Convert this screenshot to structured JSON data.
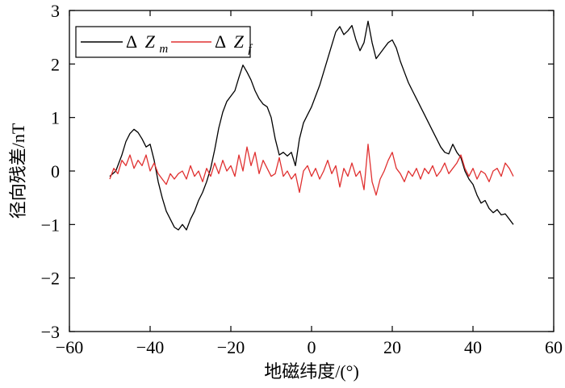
{
  "chart_data": {
    "type": "line",
    "xlabel": "地磁纬度/(°)",
    "ylabel": "径向残差/nT",
    "xlim": [
      -60,
      60
    ],
    "ylim": [
      -3,
      3
    ],
    "xticks": [
      -60,
      -40,
      -20,
      0,
      20,
      40,
      60
    ],
    "yticks": [
      -3,
      -2,
      -1,
      0,
      1,
      2,
      3
    ],
    "xtick_labels": [
      "−60",
      "−40",
      "−20",
      "0",
      "20",
      "40",
      "60"
    ],
    "ytick_labels": [
      "−3",
      "−2",
      "−1",
      "0",
      "1",
      "2",
      "3"
    ],
    "legend_position": "top-left",
    "grid": false,
    "series": [
      {
        "name": "ΔZm",
        "legend_symbol": "Δ",
        "legend_var": "Z",
        "legend_sub": "m",
        "color": "#000000",
        "points": [
          [
            -50,
            -0.1
          ],
          [
            -48.5,
            0.0
          ],
          [
            -47,
            0.3
          ],
          [
            -46,
            0.55
          ],
          [
            -45,
            0.7
          ],
          [
            -44,
            0.78
          ],
          [
            -43,
            0.72
          ],
          [
            -42,
            0.6
          ],
          [
            -41,
            0.45
          ],
          [
            -40,
            0.5
          ],
          [
            -39,
            0.2
          ],
          [
            -38,
            -0.2
          ],
          [
            -37,
            -0.5
          ],
          [
            -36,
            -0.75
          ],
          [
            -35,
            -0.9
          ],
          [
            -34,
            -1.05
          ],
          [
            -33,
            -1.1
          ],
          [
            -32,
            -1.0
          ],
          [
            -31,
            -1.1
          ],
          [
            -30,
            -0.9
          ],
          [
            -29,
            -0.75
          ],
          [
            -28,
            -0.55
          ],
          [
            -27,
            -0.4
          ],
          [
            -26,
            -0.2
          ],
          [
            -25,
            0.05
          ],
          [
            -24,
            0.4
          ],
          [
            -23,
            0.8
          ],
          [
            -22,
            1.1
          ],
          [
            -21,
            1.3
          ],
          [
            -20,
            1.4
          ],
          [
            -19,
            1.5
          ],
          [
            -18,
            1.75
          ],
          [
            -17,
            1.98
          ],
          [
            -16,
            1.85
          ],
          [
            -15,
            1.7
          ],
          [
            -14,
            1.5
          ],
          [
            -13,
            1.35
          ],
          [
            -12,
            1.25
          ],
          [
            -11,
            1.2
          ],
          [
            -10,
            1.0
          ],
          [
            -9,
            0.6
          ],
          [
            -8,
            0.3
          ],
          [
            -7,
            0.35
          ],
          [
            -6,
            0.28
          ],
          [
            -5,
            0.35
          ],
          [
            -4,
            0.1
          ],
          [
            -3,
            0.6
          ],
          [
            -2,
            0.9
          ],
          [
            -1,
            1.05
          ],
          [
            0,
            1.2
          ],
          [
            1,
            1.4
          ],
          [
            2,
            1.6
          ],
          [
            3,
            1.85
          ],
          [
            4,
            2.1
          ],
          [
            5,
            2.35
          ],
          [
            6,
            2.6
          ],
          [
            7,
            2.7
          ],
          [
            8,
            2.55
          ],
          [
            9,
            2.62
          ],
          [
            10,
            2.72
          ],
          [
            11,
            2.45
          ],
          [
            12,
            2.25
          ],
          [
            13,
            2.4
          ],
          [
            14,
            2.8
          ],
          [
            15,
            2.4
          ],
          [
            16,
            2.1
          ],
          [
            17,
            2.2
          ],
          [
            18,
            2.3
          ],
          [
            19,
            2.4
          ],
          [
            20,
            2.45
          ],
          [
            21,
            2.3
          ],
          [
            22,
            2.05
          ],
          [
            23,
            1.85
          ],
          [
            24,
            1.65
          ],
          [
            25,
            1.5
          ],
          [
            26,
            1.35
          ],
          [
            27,
            1.2
          ],
          [
            28,
            1.05
          ],
          [
            29,
            0.9
          ],
          [
            30,
            0.75
          ],
          [
            31,
            0.6
          ],
          [
            32,
            0.45
          ],
          [
            33,
            0.35
          ],
          [
            34,
            0.32
          ],
          [
            35,
            0.5
          ],
          [
            36,
            0.35
          ],
          [
            37,
            0.25
          ],
          [
            38,
            0.0
          ],
          [
            39,
            -0.15
          ],
          [
            40,
            -0.25
          ],
          [
            41,
            -0.45
          ],
          [
            42,
            -0.6
          ],
          [
            43,
            -0.55
          ],
          [
            44,
            -0.7
          ],
          [
            45,
            -0.78
          ],
          [
            46,
            -0.72
          ],
          [
            47,
            -0.82
          ],
          [
            48,
            -0.8
          ],
          [
            49,
            -0.9
          ],
          [
            50,
            -1.0
          ]
        ]
      },
      {
        "name": "ΔZf",
        "legend_symbol": "Δ",
        "legend_var": "Z",
        "legend_sub": "f",
        "color": "#e03030",
        "points": [
          [
            -50,
            -0.15
          ],
          [
            -49,
            0.05
          ],
          [
            -48,
            -0.05
          ],
          [
            -47,
            0.2
          ],
          [
            -46,
            0.1
          ],
          [
            -45,
            0.3
          ],
          [
            -44,
            0.05
          ],
          [
            -43,
            0.2
          ],
          [
            -42,
            0.1
          ],
          [
            -41,
            0.3
          ],
          [
            -40,
            0.0
          ],
          [
            -39,
            0.15
          ],
          [
            -38,
            -0.05
          ],
          [
            -37,
            -0.15
          ],
          [
            -36,
            -0.25
          ],
          [
            -35,
            -0.05
          ],
          [
            -34,
            -0.15
          ],
          [
            -33,
            -0.05
          ],
          [
            -32,
            0.0
          ],
          [
            -31,
            -0.15
          ],
          [
            -30,
            0.1
          ],
          [
            -29,
            -0.1
          ],
          [
            -28,
            0.0
          ],
          [
            -27,
            -0.2
          ],
          [
            -26,
            0.05
          ],
          [
            -25,
            -0.1
          ],
          [
            -24,
            0.15
          ],
          [
            -23,
            -0.05
          ],
          [
            -22,
            0.2
          ],
          [
            -21,
            0.0
          ],
          [
            -20,
            0.1
          ],
          [
            -19,
            -0.1
          ],
          [
            -18,
            0.3
          ],
          [
            -17,
            0.0
          ],
          [
            -16,
            0.45
          ],
          [
            -15,
            0.1
          ],
          [
            -14,
            0.35
          ],
          [
            -13,
            -0.05
          ],
          [
            -12,
            0.2
          ],
          [
            -11,
            0.05
          ],
          [
            -10,
            -0.1
          ],
          [
            -9,
            -0.05
          ],
          [
            -8,
            0.25
          ],
          [
            -7,
            -0.1
          ],
          [
            -6,
            0.0
          ],
          [
            -5,
            -0.15
          ],
          [
            -4,
            -0.05
          ],
          [
            -3,
            -0.4
          ],
          [
            -2,
            0.0
          ],
          [
            -1,
            0.1
          ],
          [
            0,
            -0.1
          ],
          [
            1,
            0.05
          ],
          [
            2,
            -0.15
          ],
          [
            3,
            0.0
          ],
          [
            4,
            0.2
          ],
          [
            5,
            -0.05
          ],
          [
            6,
            0.1
          ],
          [
            7,
            -0.3
          ],
          [
            8,
            0.05
          ],
          [
            9,
            -0.1
          ],
          [
            10,
            0.15
          ],
          [
            11,
            -0.1
          ],
          [
            12,
            0.0
          ],
          [
            13,
            -0.35
          ],
          [
            14,
            0.5
          ],
          [
            15,
            -0.2
          ],
          [
            16,
            -0.45
          ],
          [
            17,
            -0.15
          ],
          [
            18,
            0.0
          ],
          [
            19,
            0.2
          ],
          [
            20,
            0.35
          ],
          [
            21,
            0.05
          ],
          [
            22,
            -0.05
          ],
          [
            23,
            -0.2
          ],
          [
            24,
            0.0
          ],
          [
            25,
            -0.1
          ],
          [
            26,
            0.05
          ],
          [
            27,
            -0.15
          ],
          [
            28,
            0.05
          ],
          [
            29,
            -0.05
          ],
          [
            30,
            0.1
          ],
          [
            31,
            -0.1
          ],
          [
            32,
            0.0
          ],
          [
            33,
            0.15
          ],
          [
            34,
            -0.05
          ],
          [
            35,
            0.05
          ],
          [
            36,
            0.15
          ],
          [
            37,
            0.3
          ],
          [
            38,
            0.05
          ],
          [
            39,
            -0.1
          ],
          [
            40,
            0.05
          ],
          [
            41,
            -0.15
          ],
          [
            42,
            0.0
          ],
          [
            43,
            -0.05
          ],
          [
            44,
            -0.2
          ],
          [
            45,
            0.0
          ],
          [
            46,
            0.05
          ],
          [
            47,
            -0.1
          ],
          [
            48,
            0.15
          ],
          [
            49,
            0.05
          ],
          [
            50,
            -0.1
          ]
        ]
      }
    ]
  }
}
